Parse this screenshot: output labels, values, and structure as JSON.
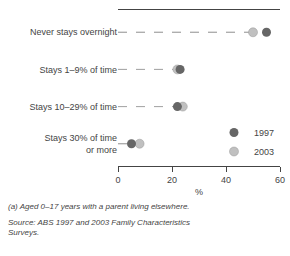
{
  "chart_data": {
    "type": "dot",
    "orientation": "horizontal",
    "categories": [
      "Never stays overnight",
      "Stays 1–9% of time",
      "Stays 10–29% of time",
      "Stays 30% of time\nor more"
    ],
    "series": [
      {
        "name": "1997",
        "color": "#666666",
        "values": [
          55,
          23,
          22,
          5
        ]
      },
      {
        "name": "2003",
        "color": "#c0c0c0",
        "values": [
          50,
          22,
          24,
          8
        ]
      }
    ],
    "xlim": [
      0,
      60
    ],
    "xticks": [
      0,
      20,
      40,
      60
    ],
    "xlabel": "%",
    "legend": "lower right",
    "grid": false,
    "annotations": [
      "(a) Aged 0–17 years with a parent living elsewhere.",
      "Source: ABS 1997 and 2003 Family Characteristics\nSurveys."
    ]
  }
}
